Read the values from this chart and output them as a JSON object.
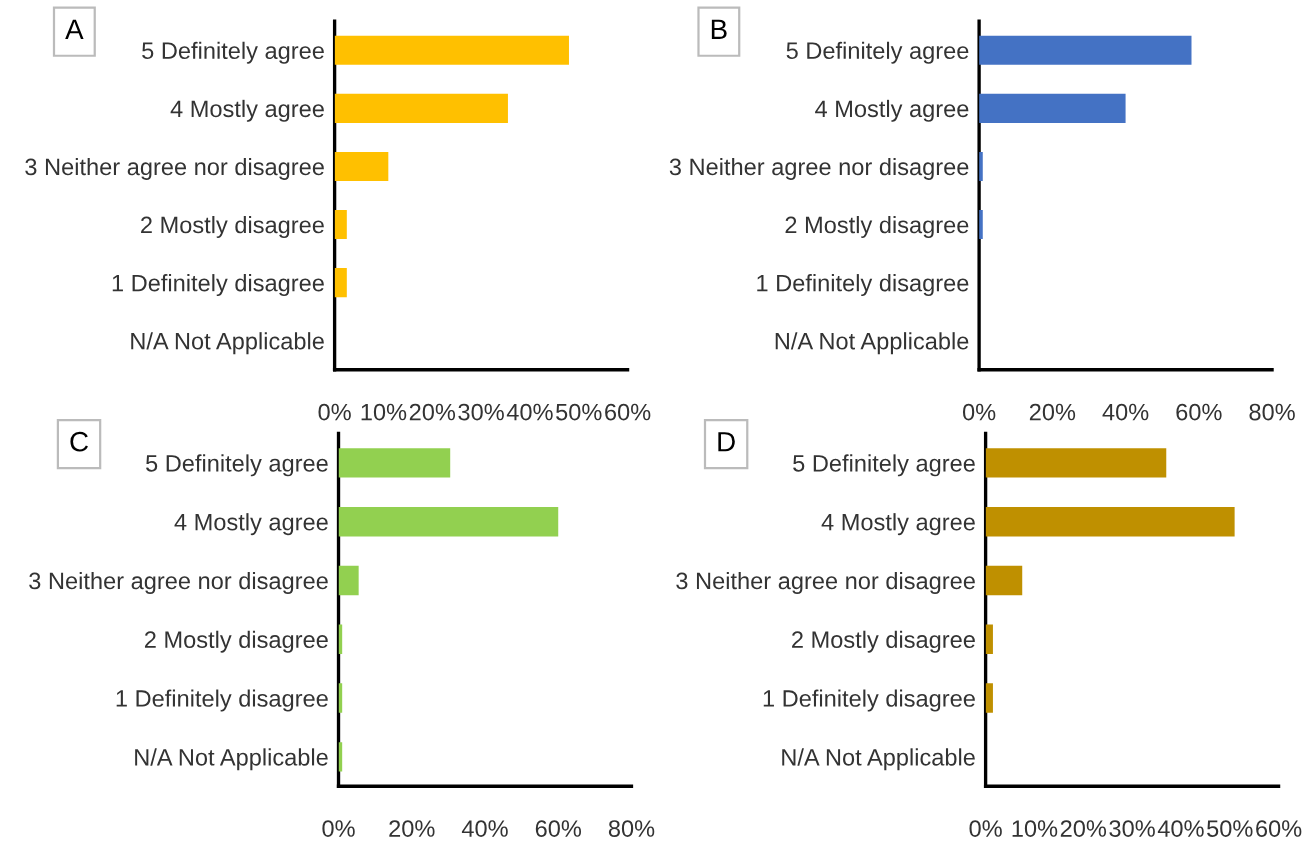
{
  "chart_data": [
    {
      "type": "bar",
      "orientation": "horizontal",
      "title": "A",
      "categories": [
        "5 Definitely agree",
        "4 Mostly agree",
        "3 Neither agree nor disagree",
        "2 Mostly disagree",
        "1 Definitely disagree",
        "N/A Not Applicable"
      ],
      "values": [
        48,
        35.5,
        11,
        2.5,
        2.5,
        0
      ],
      "color": "#ffc000",
      "xlim": [
        0,
        60
      ],
      "xticks": [
        {
          "value": 0,
          "label": "0%"
        },
        {
          "value": 10,
          "label": "10%"
        },
        {
          "value": 20,
          "label": "20%"
        },
        {
          "value": 30,
          "label": "30%"
        },
        {
          "value": 40,
          "label": "40%"
        },
        {
          "value": 50,
          "label": "50%"
        },
        {
          "value": 60,
          "label": "60%"
        }
      ],
      "grid": false
    },
    {
      "type": "bar",
      "orientation": "horizontal",
      "title": "B",
      "categories": [
        "5 Definitely agree",
        "4 Mostly agree",
        "3 Neither agree nor disagree",
        "2 Mostly disagree",
        "1 Definitely disagree",
        "N/A Not Applicable"
      ],
      "values": [
        58,
        40,
        1,
        1,
        0,
        0
      ],
      "color": "#4472c4",
      "xlim": [
        0,
        80
      ],
      "xticks": [
        {
          "value": 0,
          "label": "0%"
        },
        {
          "value": 20,
          "label": "20%"
        },
        {
          "value": 40,
          "label": "40%"
        },
        {
          "value": 60,
          "label": "60%"
        },
        {
          "value": 80,
          "label": "80%"
        }
      ],
      "grid": false
    },
    {
      "type": "bar",
      "orientation": "horizontal",
      "title": "C",
      "categories": [
        "5 Definitely agree",
        "4 Mostly agree",
        "3 Neither agree nor disagree",
        "2 Mostly disagree",
        "1 Definitely disagree",
        "N/A Not Applicable"
      ],
      "values": [
        30.5,
        60,
        5.5,
        1,
        1,
        1
      ],
      "color": "#92d050",
      "xlim": [
        0,
        80
      ],
      "xticks": [
        {
          "value": 0,
          "label": "0%"
        },
        {
          "value": 20,
          "label": "20%"
        },
        {
          "value": 40,
          "label": "40%"
        },
        {
          "value": 60,
          "label": "60%"
        },
        {
          "value": 80,
          "label": "80%"
        }
      ],
      "grid": false
    },
    {
      "type": "bar",
      "orientation": "horizontal",
      "title": "D",
      "categories": [
        "5 Definitely agree",
        "4 Mostly agree",
        "3 Neither agree nor disagree",
        "2 Mostly disagree",
        "1 Definitely disagree",
        "N/A Not Applicable"
      ],
      "values": [
        37,
        51,
        7.5,
        1.5,
        1.5,
        0
      ],
      "color": "#bf9000",
      "xlim": [
        0,
        60
      ],
      "xticks": [
        {
          "value": 0,
          "label": "0%"
        },
        {
          "value": 10,
          "label": "10%"
        },
        {
          "value": 20,
          "label": "20%"
        },
        {
          "value": 30,
          "label": "30%"
        },
        {
          "value": 40,
          "label": "40%"
        },
        {
          "value": 50,
          "label": "50%"
        },
        {
          "value": 60,
          "label": "60%"
        }
      ],
      "grid": false
    }
  ]
}
